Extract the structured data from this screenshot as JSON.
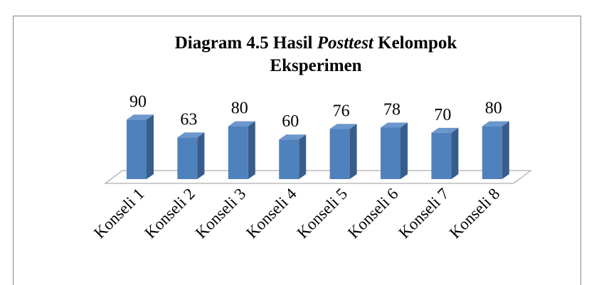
{
  "chart_data": {
    "type": "bar3d",
    "title": [
      "Diagram 4.5   Hasil",
      "Posttest",
      "Kelompok",
      "Eksperimen"
    ],
    "categories": [
      "Konseli 1",
      "Konseli 2",
      "Konseli 3",
      "Konseli 4",
      "Konseli 5",
      "Konseli 6",
      "Konseli 7",
      "Konseli 8"
    ],
    "values": [
      90,
      63,
      80,
      60,
      76,
      78,
      70,
      80
    ],
    "color": "#4f81bd"
  }
}
